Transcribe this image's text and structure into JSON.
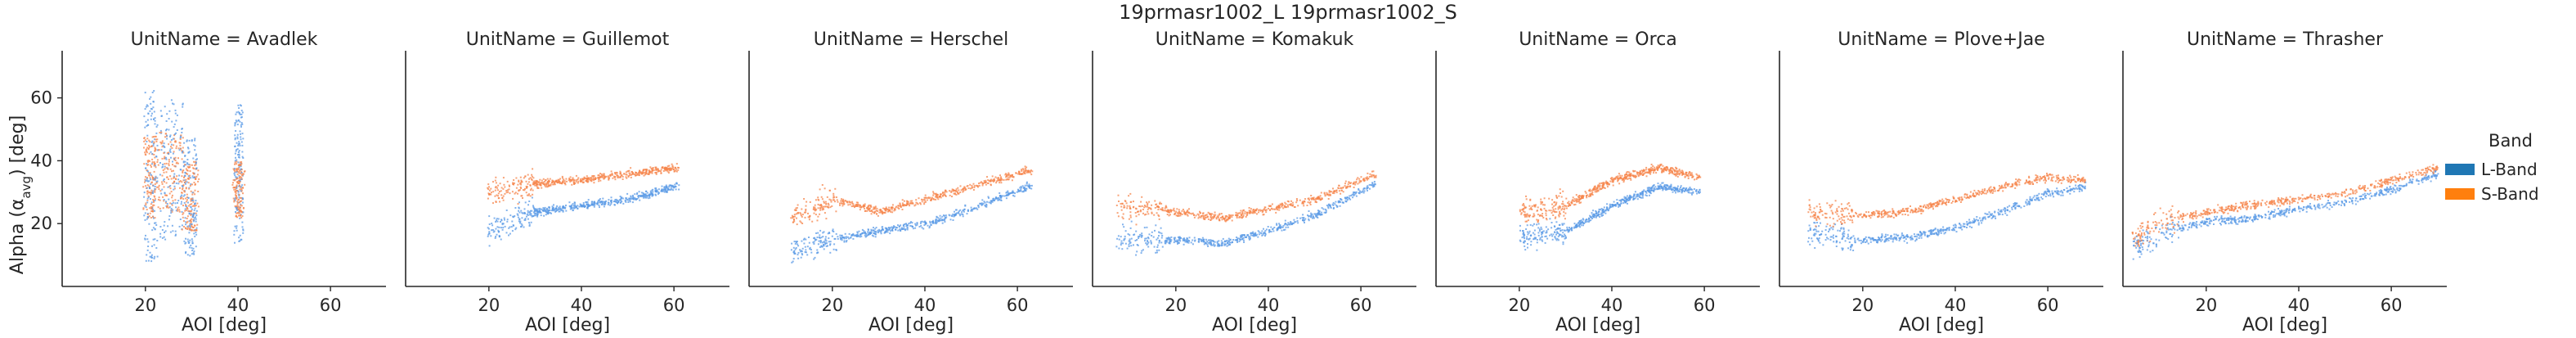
{
  "figure": {
    "suptitle": "19prmasr1002_L 19prmasr1002_S",
    "ylabel_main": "Alpha (α",
    "ylabel_sub": "avg",
    "ylabel_tail": ") [deg]",
    "xlabel": "AOI [deg]"
  },
  "legend": {
    "title": "Band",
    "placement": "right",
    "entries": [
      {
        "label": "L-Band",
        "color": "#1f77b4"
      },
      {
        "label": "S-Band",
        "color": "#ff7f0e"
      }
    ]
  },
  "colors": {
    "l_points": "#5a9ae6",
    "s_points": "#f5844a",
    "axis": "#262626"
  },
  "chart_data": {
    "type": "scatter",
    "xlim": [
      2,
      72
    ],
    "ylim": [
      0,
      75
    ],
    "xticks": [
      20,
      40,
      60
    ],
    "yticks": [
      20,
      40,
      60
    ],
    "xlabel": "AOI [deg]",
    "ylabel": "Alpha (α avg) [deg]",
    "grid": false,
    "facet_label": "UnitName",
    "panels": [
      {
        "title": "UnitName = Avadlek",
        "clusters": [
          {
            "x": [
              19.5,
              22.5
            ],
            "l_y": [
              8,
              63
            ],
            "s_y": [
              22,
              48
            ]
          },
          {
            "x": [
              23,
              28
            ],
            "l_y": [
              14,
              60
            ],
            "s_y": [
              24,
              50
            ]
          },
          {
            "x": [
              28,
              31
            ],
            "l_y": [
              10,
              48
            ],
            "s_y": [
              18,
              40
            ]
          },
          {
            "x": [
              39,
              41
            ],
            "l_y": [
              14,
              58
            ],
            "s_y": [
              22,
              40
            ]
          }
        ]
      },
      {
        "title": "UnitName = Guillemot",
        "x_range": [
          19.5,
          61
        ],
        "L": {
          "x": [
            20,
            30,
            40,
            50,
            60
          ],
          "y": [
            18,
            24,
            26,
            28,
            32
          ]
        },
        "S": {
          "x": [
            20,
            30,
            40,
            50,
            60
          ],
          "y": [
            30,
            33,
            34,
            36,
            38
          ]
        }
      },
      {
        "title": "UnitName = Herschel",
        "x_range": [
          11,
          63
        ],
        "L": {
          "x": [
            11,
            20,
            30,
            40,
            50,
            62
          ],
          "y": [
            12,
            15,
            18,
            20,
            25,
            32
          ]
        },
        "S": {
          "x": [
            11,
            20,
            30,
            40,
            50,
            62
          ],
          "y": [
            22,
            28,
            24,
            28,
            32,
            37
          ]
        }
      },
      {
        "title": "UnitName = Komakuk",
        "x_range": [
          7,
          63
        ],
        "L": {
          "x": [
            7,
            20,
            30,
            40,
            50,
            63
          ],
          "y": [
            15,
            15,
            14,
            18,
            23,
            33
          ]
        },
        "S": {
          "x": [
            7,
            20,
            30,
            40,
            50,
            63
          ],
          "y": [
            26,
            24,
            22,
            25,
            28,
            36
          ]
        }
      },
      {
        "title": "UnitName = Orca",
        "x_range": [
          20,
          59
        ],
        "L": {
          "x": [
            20,
            30,
            40,
            50,
            59
          ],
          "y": [
            16,
            18,
            26,
            32,
            30
          ]
        },
        "S": {
          "x": [
            20,
            30,
            40,
            50,
            59
          ],
          "y": [
            24,
            26,
            34,
            38,
            35
          ]
        }
      },
      {
        "title": "UnitName = Plove+Jae",
        "x_range": [
          8,
          68
        ],
        "L": {
          "x": [
            8,
            20,
            30,
            40,
            50,
            60,
            68
          ],
          "y": [
            17,
            15,
            16,
            19,
            24,
            30,
            32
          ]
        },
        "S": {
          "x": [
            8,
            20,
            30,
            40,
            50,
            60,
            68
          ],
          "y": [
            24,
            23,
            24,
            28,
            32,
            35,
            34
          ]
        }
      },
      {
        "title": "UnitName = Thrasher",
        "x_range": [
          4,
          70
        ],
        "L": {
          "x": [
            4,
            10,
            20,
            30,
            40,
            50,
            60,
            70
          ],
          "y": [
            12,
            17,
            21,
            22,
            25,
            27,
            31,
            36
          ]
        },
        "S": {
          "x": [
            4,
            10,
            20,
            30,
            40,
            50,
            60,
            70
          ],
          "y": [
            15,
            21,
            24,
            26,
            28,
            30,
            34,
            38
          ]
        }
      }
    ]
  }
}
